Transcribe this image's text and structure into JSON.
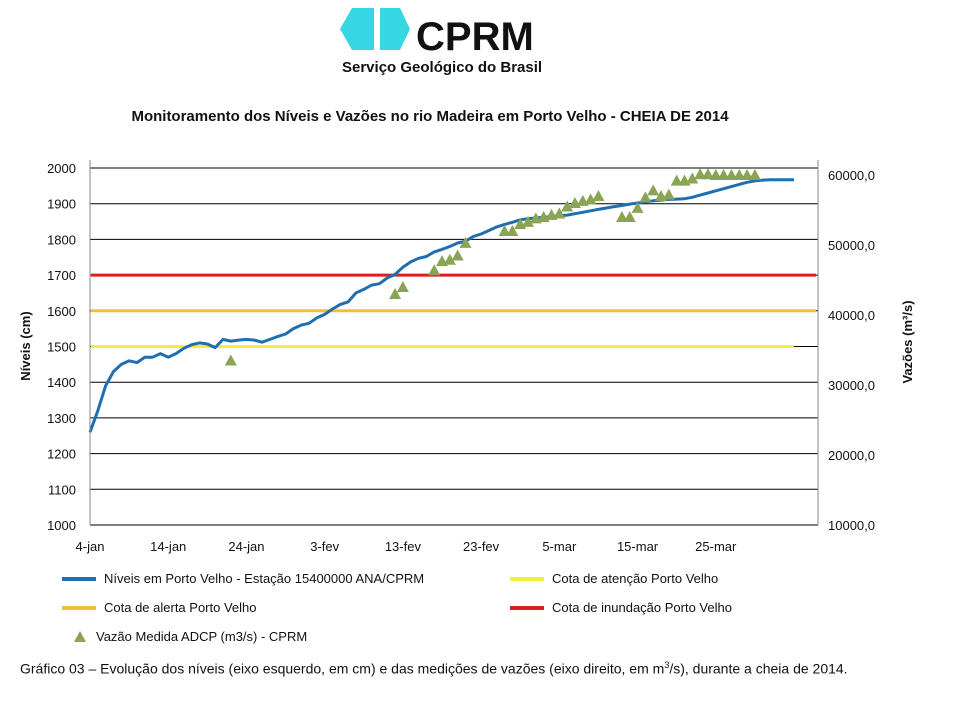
{
  "logo": {
    "name": "CPRM",
    "subtitle": "Serviço Geológico do Brasil"
  },
  "colors": {
    "niveis": "#1f6fb0",
    "atencao": "#f3ee3a",
    "alerta": "#f2c02e",
    "inundacao": "#d9201c",
    "vazao": "#8aa456",
    "logo": "#36d6e3"
  },
  "chart_data": {
    "type": "line",
    "title": "Monitoramento dos Níveis e Vazões no rio Madeira em Porto Velho - CHEIA DE 2014",
    "ylabel": "Níveis (cm)",
    "y2label": "Vazões (m³/s)",
    "ylim": [
      1000,
      2000
    ],
    "y2lim": [
      10000,
      60000
    ],
    "yticks": [
      "1000",
      "1100",
      "1200",
      "1300",
      "1400",
      "1500",
      "1600",
      "1700",
      "1800",
      "1900",
      "2000"
    ],
    "y2ticks": [
      "10000,0",
      "20000,0",
      "30000,0",
      "40000,0",
      "50000,0",
      "60000,0"
    ],
    "xticks": [
      "4-jan",
      "14-jan",
      "24-jan",
      "3-fev",
      "13-fev",
      "23-fev",
      "5-mar",
      "15-mar",
      "25-mar"
    ],
    "xlim_days": [
      0,
      90
    ],
    "series": [
      {
        "name": "Níveis em Porto Velho - Estação 15400000 ANA/CPRM",
        "x_days": [
          0,
          1,
          2,
          3,
          4,
          5,
          6,
          7,
          8,
          9,
          10,
          11,
          12,
          13,
          14,
          15,
          16,
          17,
          18,
          19,
          20,
          21,
          22,
          23,
          24,
          25,
          26,
          27,
          28,
          29,
          30,
          31,
          32,
          33,
          34,
          35,
          36,
          37,
          38,
          39,
          40,
          41,
          42,
          43,
          44,
          45,
          46,
          47,
          48,
          49,
          50,
          51,
          52,
          53,
          54,
          55,
          56,
          57,
          58,
          59,
          60,
          61,
          62,
          63,
          64,
          65,
          66,
          67,
          68,
          69,
          70,
          71,
          72,
          73,
          74,
          75,
          76,
          77,
          78,
          79,
          80,
          81,
          82,
          83,
          84,
          85,
          86,
          87,
          88,
          89,
          90
        ],
        "values": [
          1260,
          1320,
          1390,
          1430,
          1450,
          1460,
          1455,
          1470,
          1470,
          1480,
          1470,
          1480,
          1495,
          1505,
          1510,
          1507,
          1497,
          1520,
          1515,
          1518,
          1520,
          1518,
          1512,
          1520,
          1528,
          1535,
          1550,
          1560,
          1565,
          1580,
          1590,
          1605,
          1618,
          1625,
          1650,
          1660,
          1672,
          1676,
          1692,
          1702,
          1722,
          1737,
          1747,
          1752,
          1765,
          1772,
          1780,
          1790,
          1795,
          1808,
          1815,
          1825,
          1835,
          1842,
          1848,
          1855,
          1858,
          1860,
          1862,
          1864,
          1866,
          1868,
          1872,
          1876,
          1880,
          1884,
          1888,
          1892,
          1895,
          1899,
          1902,
          1905,
          1908,
          1910,
          1912,
          1913,
          1914,
          1918,
          1924,
          1930,
          1936,
          1942,
          1948,
          1954,
          1960,
          1964,
          1966,
          1967,
          1967,
          1967,
          1967
        ]
      },
      {
        "name": "Cota de atenção Porto Velho",
        "value": 1500,
        "x_days": [
          0,
          90
        ]
      },
      {
        "name": "Cota de alerta Porto Velho",
        "value": 1600,
        "x_days": [
          0,
          92
        ]
      },
      {
        "name": "Cota de inundação Porto Velho",
        "value": 1700,
        "x_days": [
          0,
          92
        ]
      },
      {
        "name": "Vazão Medida ADCP (m3/s) - CPRM",
        "axis": "right",
        "x_days": [
          18,
          39,
          40,
          44,
          45,
          46,
          47,
          48,
          53,
          54,
          55,
          56,
          57,
          58,
          59,
          60,
          61,
          62,
          63,
          64,
          65,
          68,
          69,
          70,
          71,
          72,
          73,
          74,
          75,
          76,
          77,
          78,
          79,
          80,
          81,
          82,
          83,
          84,
          85
        ],
        "values": [
          33500,
          43000,
          44000,
          46400,
          47700,
          47900,
          48500,
          50300,
          52000,
          52000,
          53000,
          53300,
          53800,
          54000,
          54300,
          54500,
          55500,
          56000,
          56300,
          56500,
          57000,
          54000,
          54000,
          55300,
          56800,
          57800,
          57000,
          57200,
          59200,
          59200,
          59500,
          60100,
          60100,
          60000,
          60000,
          60000,
          60000,
          60000,
          60000
        ]
      }
    ]
  },
  "legend": {
    "niveis": "Níveis em Porto Velho - Estação 15400000 ANA/CPRM",
    "atencao": "Cota de atenção Porto Velho",
    "alerta": "Cota de alerta Porto Velho",
    "inundacao": "Cota de inundação Porto Velho",
    "vazao": "Vazão Medida ADCP (m3/s) - CPRM"
  },
  "caption": {
    "text_a": "Gráfico 03 – Evolução dos níveis (eixo esquerdo, em cm) e das medições de vazões (eixo direito, em m",
    "sup": "3",
    "text_b": "/s), durante a cheia de 2014."
  }
}
